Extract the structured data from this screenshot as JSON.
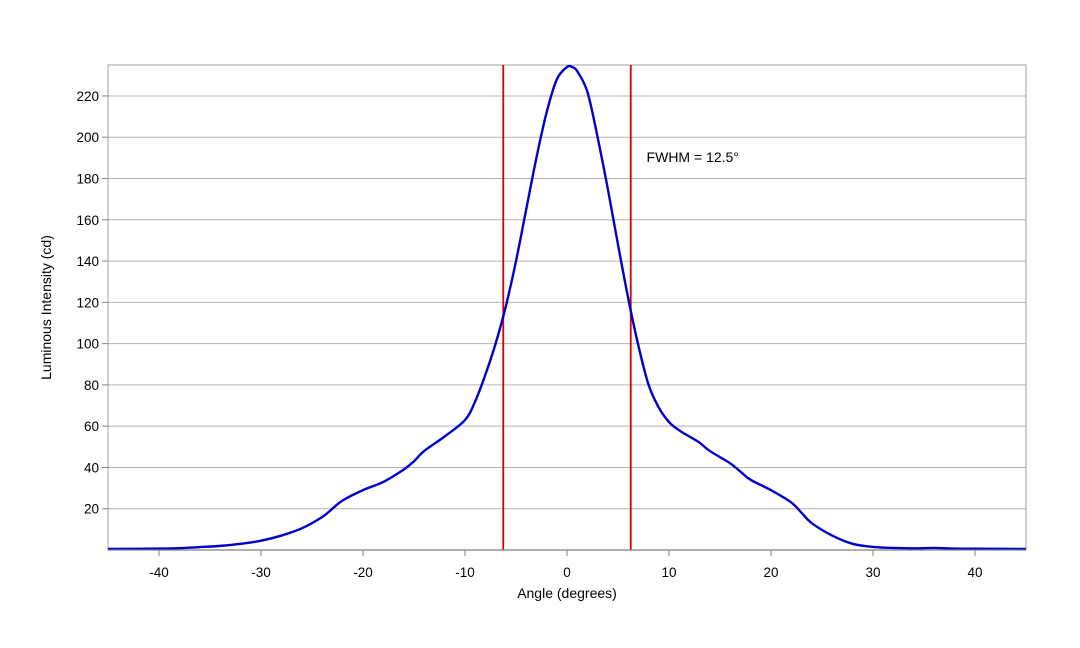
{
  "chart_data": {
    "type": "line",
    "title": "",
    "xlabel": "Angle (degrees)",
    "ylabel": "Luminous Intensity (cd)",
    "xlim": [
      -45,
      45
    ],
    "ylim": [
      0,
      235
    ],
    "xticks": [
      -40,
      -30,
      -20,
      -10,
      0,
      10,
      20,
      30,
      40
    ],
    "yticks": [
      20,
      40,
      60,
      80,
      100,
      120,
      140,
      160,
      180,
      200,
      220
    ],
    "grid": "horizontal",
    "legend": "none",
    "series": [
      {
        "color": "#0000cc",
        "x": [
          -45,
          -40,
          -38,
          -36,
          -34,
          -32,
          -30,
          -28,
          -26,
          -24,
          -23,
          -22,
          -20,
          -18,
          -16,
          -15,
          -14,
          -12,
          -10,
          -9,
          -8,
          -7,
          -6,
          -5,
          -4,
          -3,
          -2,
          -1,
          0,
          0.5,
          1,
          2,
          3,
          4,
          5,
          6,
          7,
          8,
          9,
          10,
          11,
          12,
          13,
          14,
          16,
          17,
          18,
          20,
          22,
          23,
          24,
          26,
          28,
          30,
          32,
          34,
          36,
          38,
          40,
          45
        ],
        "y": [
          0.5,
          0.7,
          0.9,
          1.4,
          2,
          3,
          4.5,
          7,
          10.5,
          16,
          20,
          24,
          29,
          33,
          39,
          43,
          48,
          55,
          63,
          72,
          85,
          100,
          118,
          140,
          165,
          190,
          212,
          228,
          234,
          234,
          232,
          222,
          200,
          175,
          148,
          122,
          99,
          80,
          69,
          62,
          58,
          55,
          52,
          48,
          42,
          38,
          34,
          29,
          23,
          18,
          13,
          7,
          3,
          1.5,
          1,
          0.8,
          1,
          0.7,
          0.6,
          0.5
        ]
      }
    ],
    "markers": [
      {
        "type": "vline",
        "x": -6.25,
        "color": "#dd0000"
      },
      {
        "type": "vline",
        "x": 6.25,
        "color": "#dd0000"
      }
    ],
    "annotations": [
      {
        "text": "FWHM = 12.5°",
        "x": 7.8,
        "y": 188
      }
    ]
  }
}
